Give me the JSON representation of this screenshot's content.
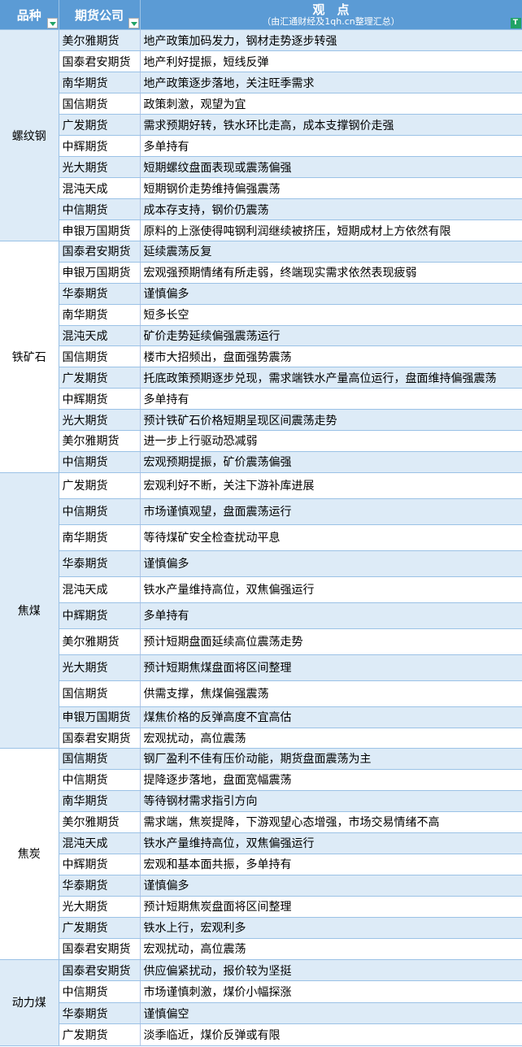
{
  "header": {
    "col1": "品种",
    "col2": "期货公司",
    "col3": "观　点",
    "col3_sub": "（由汇通财经及1qh.cn整理汇总）"
  },
  "colors": {
    "header_bg": "#5b9bd5",
    "row_alt": "#ddebf7",
    "border": "#9bc2e6",
    "filter_active": "#21a366"
  },
  "groups": [
    {
      "name": "螺纹钢",
      "rows": [
        [
          "美尔雅期货",
          "地产政策加码发力，钢材走势逐步转强"
        ],
        [
          "国泰君安期货",
          "地产利好提振，短线反弹"
        ],
        [
          "南华期货",
          "地产政策逐步落地，关注旺季需求"
        ],
        [
          "国信期货",
          "政策刺激，观望为宜"
        ],
        [
          "广发期货",
          "需求预期好转，铁水环比走高，成本支撑钢价走强"
        ],
        [
          "中辉期货",
          "多单持有"
        ],
        [
          "光大期货",
          "短期螺纹盘面表现或震荡偏强"
        ],
        [
          "混沌天成",
          "短期钢价走势维持偏强震荡"
        ],
        [
          "中信期货",
          "成本存支持，钢价仍震荡"
        ],
        [
          "申银万国期货",
          "原料的上涨使得吨钢利润继续被挤压，短期成材上方依然有限"
        ]
      ]
    },
    {
      "name": "铁矿石",
      "rows": [
        [
          "国泰君安期货",
          "延续震荡反复"
        ],
        [
          "申银万国期货",
          "宏观强预期情绪有所走弱，终端现实需求依然表现疲弱"
        ],
        [
          "华泰期货",
          "谨慎偏多"
        ],
        [
          "南华期货",
          "短多长空"
        ],
        [
          "混沌天成",
          "矿价走势延续偏强震荡运行"
        ],
        [
          "国信期货",
          "楼市大招频出，盘面强势震荡"
        ],
        [
          "广发期货",
          "托底政策预期逐步兑现，需求端铁水产量高位运行，盘面维持偏强震荡"
        ],
        [
          "中辉期货",
          "多单持有"
        ],
        [
          "光大期货",
          "预计铁矿石价格短期呈现区间震荡走势"
        ],
        [
          "美尔雅期货",
          "进一步上行驱动恐减弱"
        ],
        [
          "中信期货",
          "宏观预期提振，矿价震荡偏强"
        ]
      ]
    },
    {
      "name": "焦煤",
      "rows": [
        [
          "广发期货",
          "宏观利好不断，关注下游补库进展"
        ],
        [
          "中信期货",
          "市场谨慎观望，盘面震荡运行"
        ],
        [
          "南华期货",
          "等待煤矿安全检查扰动平息"
        ],
        [
          "华泰期货",
          "谨慎偏多"
        ],
        [
          "混沌天成",
          "铁水产量维持高位，双焦偏强运行"
        ],
        [
          "中辉期货",
          "多单持有"
        ],
        [
          "美尔雅期货",
          "预计短期盘面延续高位震荡走势"
        ],
        [
          "光大期货",
          "预计短期焦煤盘面将区间整理"
        ],
        [
          "国信期货",
          "供需支撑，焦煤偏强震荡"
        ],
        [
          "申银万国期货",
          "煤焦价格的反弹高度不宜高估"
        ],
        [
          "国泰君安期货",
          "宏观扰动，高位震荡"
        ]
      ]
    },
    {
      "name": "焦炭",
      "rows": [
        [
          "国信期货",
          "钢厂盈利不佳有压价动能，期货盘面震荡为主"
        ],
        [
          "中信期货",
          "提降逐步落地，盘面宽幅震荡"
        ],
        [
          "南华期货",
          "等待钢材需求指引方向"
        ],
        [
          "美尔雅期货",
          "需求端，焦炭提降，下游观望心态增强，市场交易情绪不高"
        ],
        [
          "混沌天成",
          "铁水产量维持高位，双焦偏强运行"
        ],
        [
          "中辉期货",
          "宏观和基本面共振，多单持有"
        ],
        [
          "华泰期货",
          "谨慎偏多"
        ],
        [
          "光大期货",
          "预计短期焦炭盘面将区间整理"
        ],
        [
          "广发期货",
          "铁水上行，宏观利多"
        ],
        [
          "国泰君安期货",
          "宏观扰动，高位震荡"
        ]
      ]
    },
    {
      "name": "动力煤",
      "rows": [
        [
          "国泰君安期货",
          "供应偏紧扰动，报价较为坚挺"
        ],
        [
          "中信期货",
          "市场谨慎刺激，煤价小幅探涨"
        ],
        [
          "华泰期货",
          "谨慎偏空"
        ],
        [
          "广发期货",
          "淡季临近，煤价反弹或有限"
        ]
      ]
    }
  ]
}
